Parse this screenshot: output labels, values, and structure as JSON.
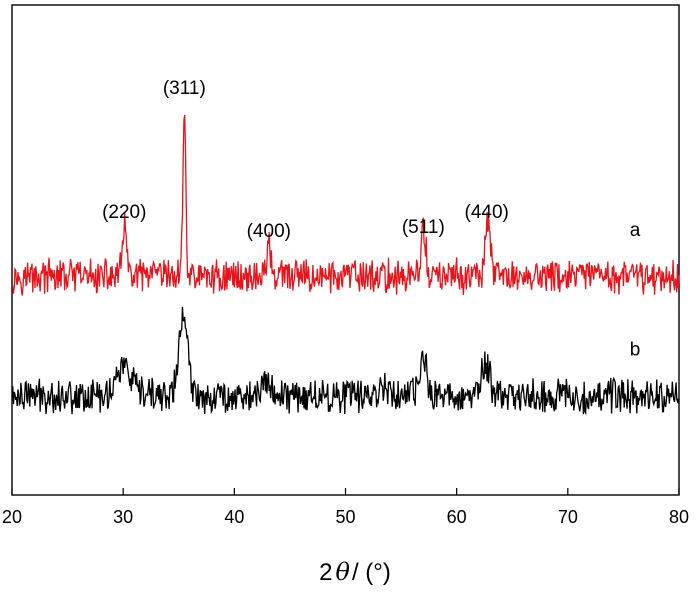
{
  "chart_data": {
    "type": "line",
    "xlabel_parts": {
      "prefix": "2",
      "symbol": "θ",
      "suffix": "/ (°)"
    },
    "xlim": [
      20,
      80
    ],
    "x_ticks": [
      20,
      30,
      40,
      50,
      60,
      70,
      80
    ],
    "y_ticks_shown": false,
    "grid": false,
    "peak_annotations": [
      {
        "label": "(220)",
        "x": 30.1
      },
      {
        "label": "(311)",
        "x": 35.5
      },
      {
        "label": "(400)",
        "x": 43.1
      },
      {
        "label": "(511)",
        "x": 57.0
      },
      {
        "label": "(440)",
        "x": 62.7
      }
    ],
    "series": [
      {
        "name": "a",
        "color": "#e8141c",
        "baseline": 0.0,
        "noise": 0.45,
        "peaks": [
          {
            "x": 30.1,
            "height": 1.6,
            "width": 0.25
          },
          {
            "x": 35.5,
            "height": 5.2,
            "width": 0.18
          },
          {
            "x": 43.1,
            "height": 0.9,
            "width": 0.3
          },
          {
            "x": 57.0,
            "height": 1.4,
            "width": 0.3
          },
          {
            "x": 62.8,
            "height": 1.8,
            "width": 0.3
          }
        ]
      },
      {
        "name": "b",
        "color": "#000000",
        "baseline": -3.6,
        "noise": 0.45,
        "peaks": [
          {
            "x": 30.0,
            "height": 0.9,
            "width": 0.9
          },
          {
            "x": 35.4,
            "height": 2.4,
            "width": 0.55
          },
          {
            "x": 43.0,
            "height": 0.4,
            "width": 0.6
          },
          {
            "x": 53.5,
            "height": 0.3,
            "width": 0.8
          },
          {
            "x": 57.0,
            "height": 1.1,
            "width": 0.45
          },
          {
            "x": 62.6,
            "height": 0.9,
            "width": 0.55
          }
        ]
      }
    ]
  }
}
